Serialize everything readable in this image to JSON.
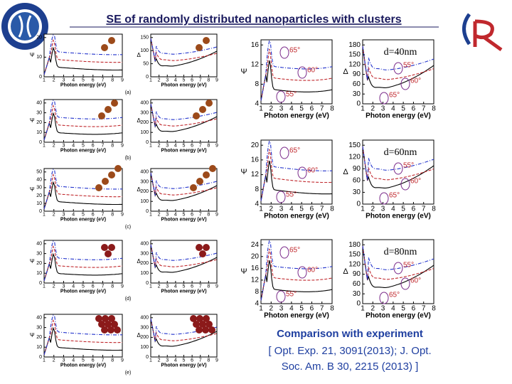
{
  "header": {
    "title": "SE of randomly distributed nanoparticles with clusters"
  },
  "left_xticks": [
    1,
    2,
    3,
    4,
    5,
    6,
    7,
    8,
    9
  ],
  "left_xlabel": "Photon energy (eV)",
  "left_panels": [
    {
      "label": "(a)",
      "psi": {
        "ylabel": "Ψ",
        "yticks": [
          0,
          10,
          20
        ]
      },
      "delta": {
        "ylabel": "Δ",
        "yticks": [
          0,
          50,
          100,
          150
        ]
      }
    },
    {
      "label": "(b)",
      "psi": {
        "ylabel": "Ψ",
        "yticks": [
          0,
          10,
          20,
          30,
          40
        ]
      },
      "delta": {
        "ylabel": "Δ",
        "yticks": [
          0,
          100,
          200,
          300,
          400
        ]
      }
    },
    {
      "label": "(c)",
      "psi": {
        "ylabel": "Ψ",
        "yticks": [
          0,
          10,
          20,
          30,
          40,
          50
        ]
      },
      "delta": {
        "ylabel": "Δ",
        "yticks": [
          0,
          100,
          200,
          300,
          400
        ]
      }
    },
    {
      "label": "(d)",
      "psi": {
        "ylabel": "Ψ",
        "yticks": [
          0,
          10,
          20,
          30,
          40
        ]
      },
      "delta": {
        "ylabel": "Δ",
        "yticks": [
          0,
          100,
          200,
          300,
          400
        ]
      }
    },
    {
      "label": "(e)",
      "psi": {
        "ylabel": "Ψ",
        "yticks": [
          0,
          10,
          20,
          30,
          40
        ]
      },
      "delta": {
        "ylabel": "Δ",
        "yticks": [
          0,
          100,
          200,
          300,
          400
        ]
      }
    }
  ],
  "right_xticks": [
    1,
    2,
    3,
    4,
    5,
    6,
    7,
    8
  ],
  "right_xlabel": "Photon energy (eV)",
  "right_panels": [
    {
      "title": "d=40nm",
      "psi": {
        "ylabel": "Ψ",
        "yticks": [
          4,
          8,
          12,
          16
        ],
        "angles": [
          "65°",
          "60°",
          "55°"
        ]
      },
      "delta": {
        "ylabel": "Δ",
        "yticks": [
          0,
          30,
          60,
          90,
          120,
          150,
          180
        ],
        "angles": [
          "55°",
          "60°",
          "65°"
        ]
      }
    },
    {
      "title": "d=60nm",
      "psi": {
        "ylabel": "Ψ",
        "yticks": [
          4,
          8,
          12,
          16,
          20
        ],
        "angles": [
          "65°",
          "60°",
          "55°"
        ]
      },
      "delta": {
        "ylabel": "Δ",
        "yticks": [
          0,
          30,
          60,
          90,
          120,
          150
        ],
        "angles": [
          "55°",
          "60°",
          "65°"
        ]
      }
    },
    {
      "title": "d=80nm",
      "psi": {
        "ylabel": "Ψ",
        "yticks": [
          4,
          8,
          12,
          16,
          20,
          24
        ],
        "angles": [
          "65°",
          "60°",
          "55°"
        ]
      },
      "delta": {
        "ylabel": "Δ",
        "yticks": [
          0,
          30,
          60,
          90,
          120,
          150,
          180
        ],
        "angles": [
          "55°",
          "60°",
          "65°"
        ]
      }
    }
  ],
  "caption": {
    "line1": "Comparison with experiment",
    "line2": "[ Opt. Exp. 21, 3091(2013); J. Opt.",
    "line3": "Soc. Am. B 30, 2215 (2013)  ]"
  }
}
